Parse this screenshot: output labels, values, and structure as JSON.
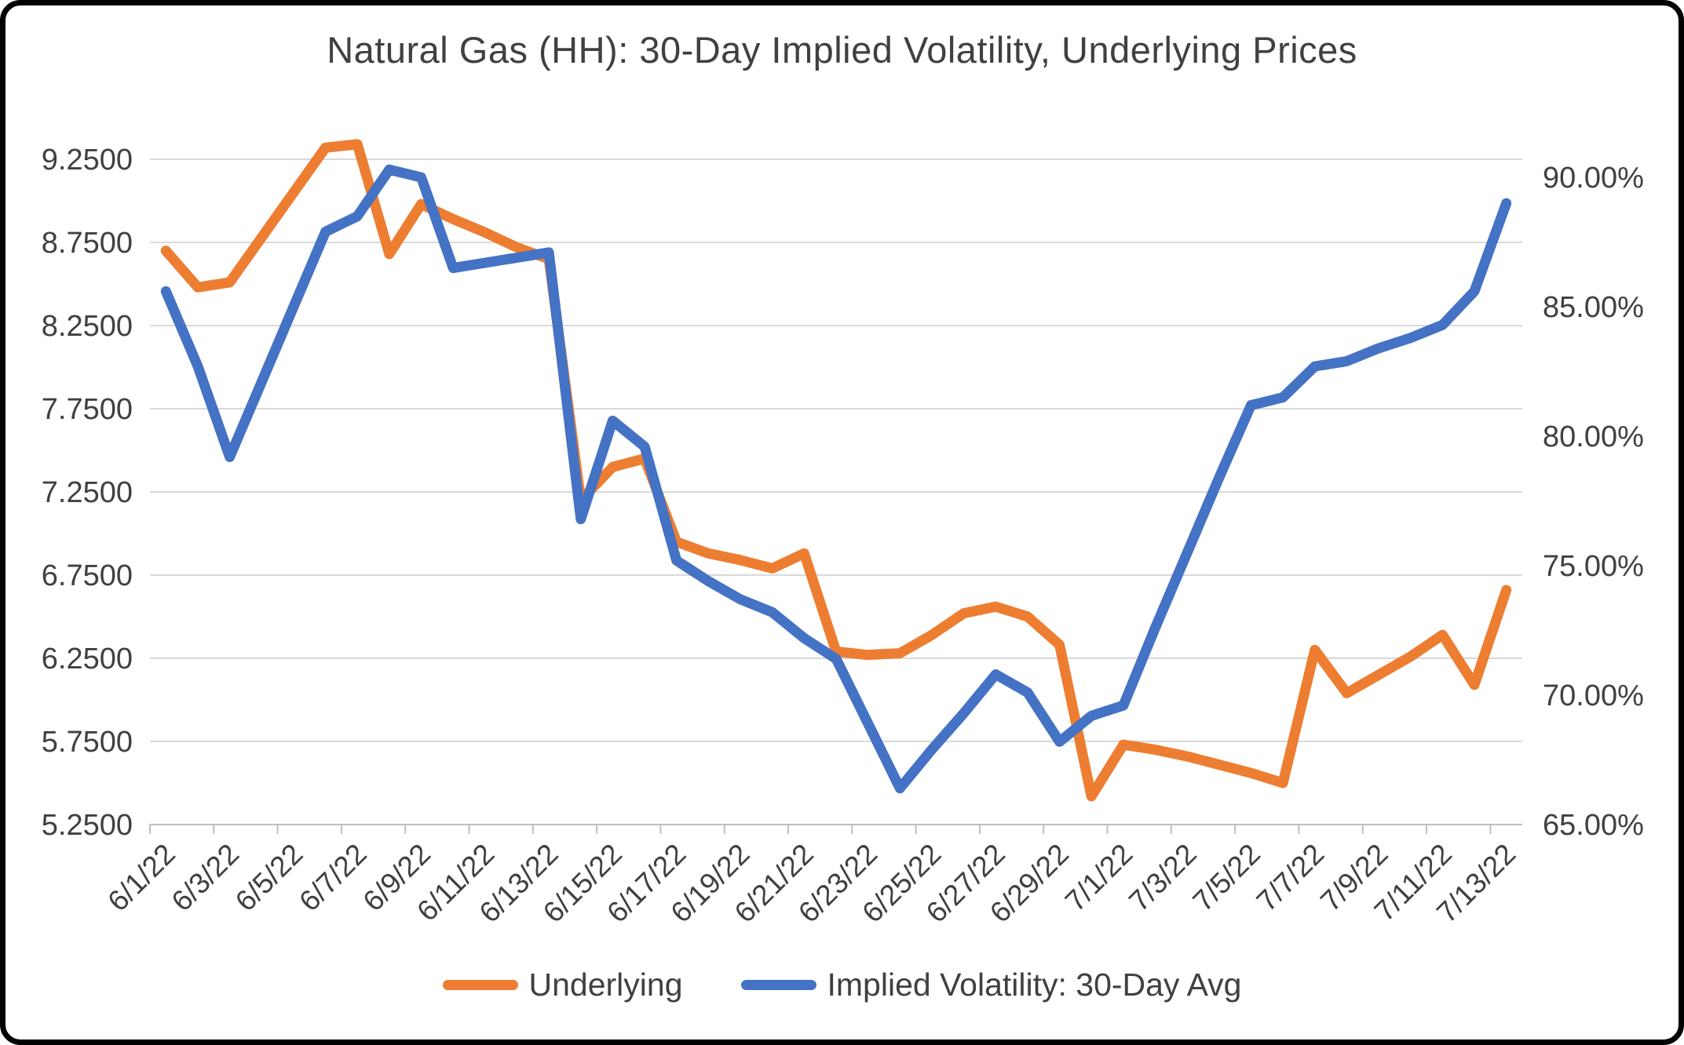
{
  "title": "Natural Gas (HH): 30-Day Implied Volatility, Underlying Prices",
  "colors": {
    "underlying": "#ED7D31",
    "implied_volatility": "#4472C4",
    "gridline": "#D9D9D9",
    "axis_line": "#BFBFBF",
    "text": "#404040",
    "frame": "#010101",
    "background": "#FFFFFF"
  },
  "chart_data": {
    "type": "line",
    "title": "Natural Gas (HH): 30-Day Implied Volatility, Underlying Prices",
    "xlabel": "",
    "ylabel_left": "",
    "ylabel_right": "",
    "grid": true,
    "legend_position": "bottom",
    "x": [
      "6/1/22",
      "6/2/22",
      "6/3/22",
      "6/4/22",
      "6/5/22",
      "6/6/22",
      "6/7/22",
      "6/8/22",
      "6/9/22",
      "6/10/22",
      "6/11/22",
      "6/12/22",
      "6/13/22",
      "6/14/22",
      "6/15/22",
      "6/16/22",
      "6/17/22",
      "6/18/22",
      "6/19/22",
      "6/20/22",
      "6/21/22",
      "6/22/22",
      "6/23/22",
      "6/24/22",
      "6/25/22",
      "6/26/22",
      "6/27/22",
      "6/28/22",
      "6/29/22",
      "6/30/22",
      "7/1/22",
      "7/2/22",
      "7/3/22",
      "7/4/22",
      "7/5/22",
      "7/6/22",
      "7/7/22",
      "7/8/22",
      "7/9/22",
      "7/10/22",
      "7/11/22",
      "7/12/22",
      "7/13/22"
    ],
    "x_label_interval": 2,
    "x_tick_labels_shown": [
      "6/1/22",
      "6/3/22",
      "6/5/22",
      "6/7/22",
      "6/9/22",
      "6/11/22",
      "6/13/22",
      "6/15/22",
      "6/17/22",
      "6/19/22",
      "6/21/22",
      "6/23/22",
      "6/25/22",
      "6/27/22",
      "6/29/22",
      "7/1/22",
      "7/3/22",
      "7/5/22",
      "7/7/22",
      "7/9/22",
      "7/11/22",
      "7/13/22"
    ],
    "series": [
      {
        "name": "Underlying",
        "axis": "left",
        "color": "#ED7D31",
        "values": [
          8.7,
          8.48,
          8.51,
          8.78,
          9.05,
          9.32,
          9.34,
          8.68,
          8.98,
          8.89,
          8.81,
          8.72,
          8.65,
          7.2,
          7.4,
          7.45,
          6.95,
          6.88,
          6.84,
          6.79,
          6.88,
          6.29,
          6.27,
          6.28,
          6.39,
          6.52,
          6.56,
          6.5,
          6.33,
          5.42,
          5.73,
          5.7,
          5.66,
          5.61,
          5.56,
          5.5,
          6.3,
          6.04,
          6.15,
          6.26,
          6.39,
          6.09,
          6.66
        ]
      },
      {
        "name": "Implied Volatility: 30-Day Avg",
        "axis": "right",
        "color": "#4472C4",
        "values": [
          85.6,
          82.7,
          79.2,
          82.1,
          85.0,
          87.9,
          88.5,
          90.3,
          90.0,
          86.5,
          86.7,
          86.9,
          87.1,
          76.8,
          80.6,
          79.6,
          75.2,
          74.4,
          73.7,
          73.2,
          72.2,
          71.4,
          68.9,
          66.4,
          67.9,
          69.3,
          70.8,
          70.1,
          68.2,
          69.2,
          69.6,
          72.6,
          75.5,
          78.4,
          81.2,
          81.5,
          82.7,
          82.9,
          83.4,
          83.8,
          84.3,
          85.6,
          89.0
        ]
      }
    ],
    "left_axis": {
      "min": 5.25,
      "max": 9.25,
      "step": 0.5,
      "tick_labels": [
        "9.2500",
        "8.7500",
        "8.2500",
        "7.7500",
        "7.2500",
        "6.7500",
        "6.2500",
        "5.7500",
        "5.2500"
      ]
    },
    "right_axis": {
      "min": 65.0,
      "max": 90.7,
      "ticks": [
        90,
        85,
        80,
        75,
        70,
        65
      ],
      "tick_labels": [
        "90.00%",
        "85.00%",
        "80.00%",
        "75.00%",
        "70.00%",
        "65.00%"
      ]
    }
  }
}
